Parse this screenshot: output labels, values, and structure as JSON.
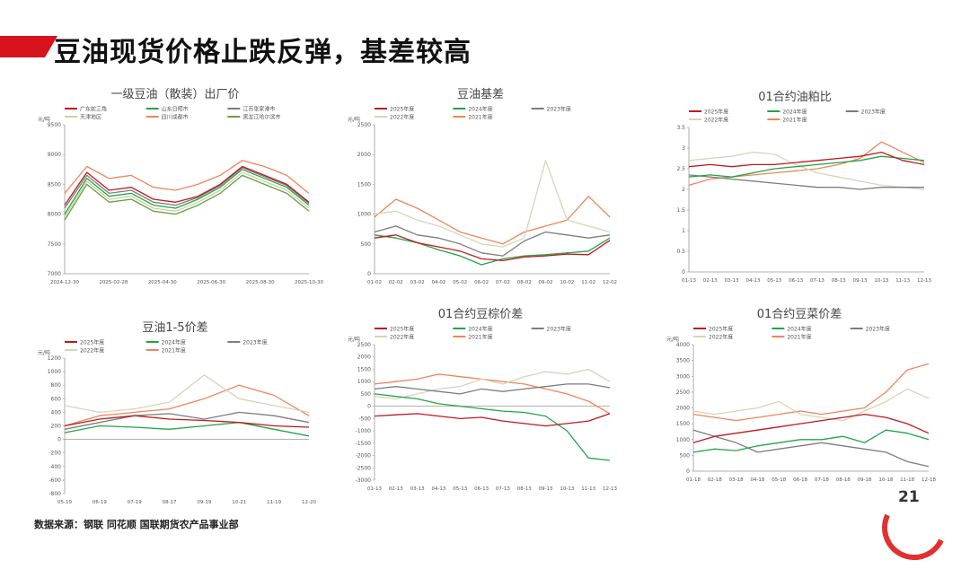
{
  "header": {
    "title": "豆油现货价格止跌反弹，基差较高"
  },
  "footer": {
    "source": "数据来源：钢联  同花顺  国联期货农产品事业部",
    "page": "21"
  },
  "colors": {
    "accent": "#d7131c"
  },
  "chart_data": [
    {
      "type": "line",
      "title": "一级豆油（散装）出厂价",
      "ylabel": "元/吨",
      "ylim": [
        7000,
        9500
      ],
      "yticks": [
        7000,
        7500,
        8000,
        8500,
        9000,
        9500
      ],
      "xticks": [
        "2024-12-30",
        "2025-02-28",
        "2025-04-30",
        "2025-06-30",
        "2025-08-30",
        "2025-10-30"
      ],
      "x": [
        "2024-12-30",
        "2025-01-31",
        "2025-02-28",
        "2025-03-31",
        "2025-04-30",
        "2025-05-31",
        "2025-06-30",
        "2025-07-31",
        "2025-08-30",
        "2025-09-30",
        "2025-10-30",
        "2025-11-30"
      ],
      "series": [
        {
          "name": "广东蛇三角",
          "color": "#c0181d",
          "values": [
            8150,
            8700,
            8400,
            8450,
            8250,
            8200,
            8300,
            8500,
            8800,
            8650,
            8500,
            8200
          ]
        },
        {
          "name": "山东日照市",
          "color": "#23a447",
          "values": [
            8000,
            8600,
            8300,
            8350,
            8150,
            8100,
            8250,
            8450,
            8750,
            8600,
            8450,
            8150
          ]
        },
        {
          "name": "江苏张家港市",
          "color": "#7d7d7d",
          "values": [
            8100,
            8650,
            8350,
            8400,
            8200,
            8150,
            8280,
            8480,
            8780,
            8630,
            8480,
            8180
          ]
        },
        {
          "name": "天津地区",
          "color": "#c6d3a8",
          "values": [
            7950,
            8550,
            8250,
            8300,
            8100,
            8050,
            8200,
            8400,
            8700,
            8550,
            8400,
            8100
          ]
        },
        {
          "name": "四川成都市",
          "color": "#f1845a",
          "values": [
            8350,
            8800,
            8600,
            8650,
            8450,
            8400,
            8500,
            8650,
            8900,
            8800,
            8650,
            8350
          ]
        },
        {
          "name": "黑龙江哈尔滨市",
          "color": "#6a9e3a",
          "values": [
            7900,
            8500,
            8200,
            8250,
            8050,
            8000,
            8150,
            8350,
            8650,
            8500,
            8350,
            8050
          ]
        }
      ]
    },
    {
      "type": "line",
      "title": "豆油基差",
      "ylabel": "元/吨",
      "ylim": [
        0,
        2500
      ],
      "yticks": [
        0,
        500,
        1000,
        1500,
        2000,
        2500
      ],
      "xticks": [
        "01-02",
        "02-02",
        "03-02",
        "04-02",
        "05-02",
        "06-02",
        "07-02",
        "08-02",
        "09-02",
        "10-02",
        "11-02",
        "12-02"
      ],
      "x": [
        1,
        2,
        3,
        4,
        5,
        6,
        7,
        8,
        9,
        10,
        11,
        12
      ],
      "series": [
        {
          "name": "2025年度",
          "color": "#c0181d",
          "values": [
            600,
            650,
            520,
            450,
            380,
            250,
            220,
            280,
            300,
            330,
            320,
            560
          ]
        },
        {
          "name": "2024年度",
          "color": "#23a447",
          "values": [
            650,
            600,
            520,
            400,
            300,
            150,
            250,
            300,
            320,
            350,
            380,
            600
          ]
        },
        {
          "name": "2023年度",
          "color": "#7d7d7d",
          "values": [
            700,
            800,
            650,
            600,
            500,
            350,
            300,
            550,
            700,
            650,
            600,
            650
          ]
        },
        {
          "name": "2022年度",
          "color": "#d8d4b8",
          "values": [
            1000,
            1050,
            900,
            800,
            650,
            500,
            450,
            600,
            1900,
            900,
            800,
            700
          ]
        },
        {
          "name": "2021年度",
          "color": "#f1845a",
          "values": [
            950,
            1250,
            1100,
            900,
            700,
            600,
            500,
            700,
            800,
            900,
            1300,
            950
          ]
        }
      ]
    },
    {
      "type": "line",
      "title": "01合约油粕比",
      "ylim": [
        0,
        3.5
      ],
      "yticks": [
        0,
        0.5,
        1,
        1.5,
        2,
        2.5,
        3,
        3.5
      ],
      "xticks": [
        "01-13",
        "02-13",
        "03-13",
        "04-13",
        "05-13",
        "06-13",
        "07-13",
        "08-13",
        "09-13",
        "10-13",
        "11-13",
        "12-13"
      ],
      "x": [
        1,
        2,
        3,
        4,
        5,
        6,
        7,
        8,
        9,
        10,
        11,
        12
      ],
      "series": [
        {
          "name": "2025年度",
          "color": "#c0181d",
          "values": [
            2.55,
            2.6,
            2.55,
            2.6,
            2.6,
            2.65,
            2.7,
            2.75,
            2.8,
            2.9,
            2.7,
            2.6
          ]
        },
        {
          "name": "2024年度",
          "color": "#23a447",
          "values": [
            2.3,
            2.35,
            2.3,
            2.4,
            2.5,
            2.55,
            2.6,
            2.65,
            2.7,
            2.8,
            2.75,
            2.7
          ]
        },
        {
          "name": "2023年度",
          "color": "#7d7d7d",
          "values": [
            2.35,
            2.3,
            2.25,
            2.2,
            2.15,
            2.1,
            2.05,
            2.05,
            2.0,
            2.05,
            2.05,
            2.05
          ]
        },
        {
          "name": "2022年度",
          "color": "#d8d4b8",
          "values": [
            2.7,
            2.75,
            2.8,
            2.9,
            2.85,
            2.6,
            2.4,
            2.3,
            2.2,
            2.1,
            2.05,
            2.0
          ]
        },
        {
          "name": "2021年度",
          "color": "#f1845a",
          "values": [
            2.1,
            2.25,
            2.3,
            2.35,
            2.4,
            2.45,
            2.5,
            2.6,
            2.75,
            3.15,
            2.9,
            2.65
          ]
        }
      ]
    },
    {
      "type": "line",
      "title": "豆油1-5价差",
      "ylabel": "元/吨",
      "ylim": [
        -800,
        1200
      ],
      "yticks": [
        -800,
        -600,
        -400,
        -200,
        0,
        200,
        400,
        600,
        800,
        1000,
        1200
      ],
      "xticks": [
        "05-19",
        "06-19",
        "07-19",
        "08-17",
        "09-19",
        "10-21",
        "11-19",
        "12-20"
      ],
      "x": [
        1,
        2,
        3,
        4,
        5,
        6,
        7,
        8
      ],
      "series": [
        {
          "name": "2025年度",
          "color": "#c0181d",
          "values": [
            200,
            300,
            350,
            300,
            280,
            250,
            200,
            180
          ]
        },
        {
          "name": "2024年度",
          "color": "#23a447",
          "values": [
            100,
            200,
            180,
            150,
            200,
            250,
            150,
            50
          ]
        },
        {
          "name": "2023年度",
          "color": "#7d7d7d",
          "values": [
            150,
            250,
            350,
            380,
            300,
            400,
            350,
            250
          ]
        },
        {
          "name": "2022年度",
          "color": "#d8d4b8",
          "values": [
            500,
            400,
            450,
            550,
            950,
            600,
            500,
            400
          ]
        },
        {
          "name": "2021年度",
          "color": "#f1845a",
          "values": [
            200,
            350,
            400,
            450,
            600,
            800,
            650,
            350
          ]
        }
      ]
    },
    {
      "type": "line",
      "title": "01合约豆棕价差",
      "ylabel": "元/吨",
      "ylim": [
        -3000,
        2500
      ],
      "yticks": [
        -3000,
        -2500,
        -2000,
        -1500,
        -1000,
        -500,
        0,
        500,
        1000,
        1500,
        2000,
        2500
      ],
      "xticks": [
        "01-13",
        "02-13",
        "03-13",
        "04-13",
        "05-13",
        "06-13",
        "07-13",
        "08-13",
        "09-13",
        "10-13",
        "11-13",
        "12-13"
      ],
      "x": [
        1,
        2,
        3,
        4,
        5,
        6,
        7,
        8,
        9,
        10,
        11,
        12
      ],
      "series": [
        {
          "name": "2025年度",
          "color": "#c0181d",
          "values": [
            -400,
            -350,
            -300,
            -400,
            -500,
            -450,
            -600,
            -700,
            -800,
            -700,
            -600,
            -300
          ]
        },
        {
          "name": "2024年度",
          "color": "#23a447",
          "values": [
            500,
            400,
            300,
            100,
            0,
            -100,
            -200,
            -250,
            -400,
            -1000,
            -2100,
            -2200
          ]
        },
        {
          "name": "2023年度",
          "color": "#7d7d7d",
          "values": [
            700,
            800,
            700,
            600,
            500,
            700,
            600,
            700,
            800,
            900,
            900,
            750
          ]
        },
        {
          "name": "2022年度",
          "color": "#d8d4b8",
          "values": [
            400,
            300,
            500,
            700,
            800,
            1100,
            900,
            1200,
            1400,
            1300,
            1500,
            1000
          ]
        },
        {
          "name": "2021年度",
          "color": "#f1845a",
          "values": [
            900,
            1000,
            1100,
            1300,
            1200,
            1100,
            1000,
            900,
            700,
            500,
            200,
            -300
          ]
        }
      ]
    },
    {
      "type": "line",
      "title": "01合约豆菜价差",
      "ylabel": "元/吨",
      "ylim": [
        0,
        4000
      ],
      "yticks": [
        0,
        500,
        1000,
        1500,
        2000,
        2500,
        3000,
        3500,
        4000
      ],
      "xticks": [
        "01-18",
        "02-18",
        "03-18",
        "04-18",
        "05-18",
        "06-18",
        "07-18",
        "08-18",
        "09-18",
        "10-18",
        "11-18",
        "12-18"
      ],
      "x": [
        1,
        2,
        3,
        4,
        5,
        6,
        7,
        8,
        9,
        10,
        11,
        12
      ],
      "series": [
        {
          "name": "2025年度",
          "color": "#c0181d",
          "values": [
            900,
            1100,
            1200,
            1300,
            1400,
            1500,
            1600,
            1700,
            1800,
            1700,
            1500,
            1200
          ]
        },
        {
          "name": "2024年度",
          "color": "#23a447",
          "values": [
            600,
            700,
            650,
            800,
            900,
            1000,
            1000,
            1100,
            900,
            1300,
            1200,
            1000
          ]
        },
        {
          "name": "2023年度",
          "color": "#7d7d7d",
          "values": [
            1300,
            1100,
            900,
            600,
            700,
            800,
            900,
            800,
            700,
            600,
            300,
            150
          ]
        },
        {
          "name": "2022年度",
          "color": "#d8d4b8",
          "values": [
            1900,
            1800,
            1900,
            2000,
            2200,
            1800,
            1700,
            1600,
            1900,
            2200,
            2600,
            2300
          ]
        },
        {
          "name": "2021年度",
          "color": "#f1845a",
          "values": [
            1800,
            1700,
            1600,
            1700,
            1800,
            1900,
            1800,
            1900,
            2000,
            2500,
            3200,
            3400
          ]
        }
      ]
    }
  ]
}
